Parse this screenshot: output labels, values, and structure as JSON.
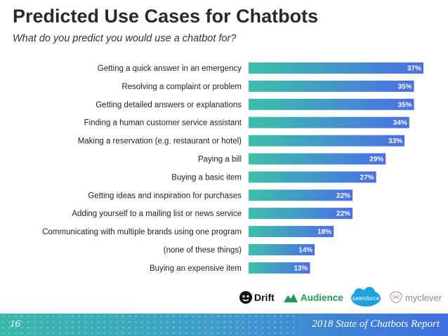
{
  "title": "Predicted Use Cases for Chatbots",
  "subtitle": "What do you predict you would use a chatbot for?",
  "chart_data": {
    "type": "bar",
    "orientation": "horizontal",
    "categories": [
      "Getting a quick answer in an emergency",
      "Resolving a complaint or problem",
      "Getting detailed answers or explanations",
      "Finding a human customer service assistant",
      "Making a reservation (e.g. restaurant or hotel)",
      "Paying a bill",
      "Buying a basic item",
      "Getting ideas and inspiration for purchases",
      "Adding yourself to a mailing list or news service",
      "Communicating with multiple brands using one program",
      "(none of these things)",
      "Buying an expensive item"
    ],
    "values": [
      37,
      35,
      35,
      34,
      33,
      29,
      27,
      22,
      22,
      18,
      14,
      13
    ],
    "value_labels": [
      "37%",
      "35%",
      "35%",
      "34%",
      "33%",
      "29%",
      "27%",
      "22%",
      "22%",
      "18%",
      "14%",
      "13%"
    ],
    "xlim": [
      0,
      37
    ],
    "grid": false,
    "bar_colors": {
      "start": "#3cc0a8",
      "end": "#4a6ee8"
    }
  },
  "logos": {
    "drift": "Drift",
    "audience": "Audience",
    "salesforce": "salesforce",
    "myclever": "myclever"
  },
  "footer": {
    "page_number": "16",
    "report_title": "2018 State of Chatbots Report"
  }
}
